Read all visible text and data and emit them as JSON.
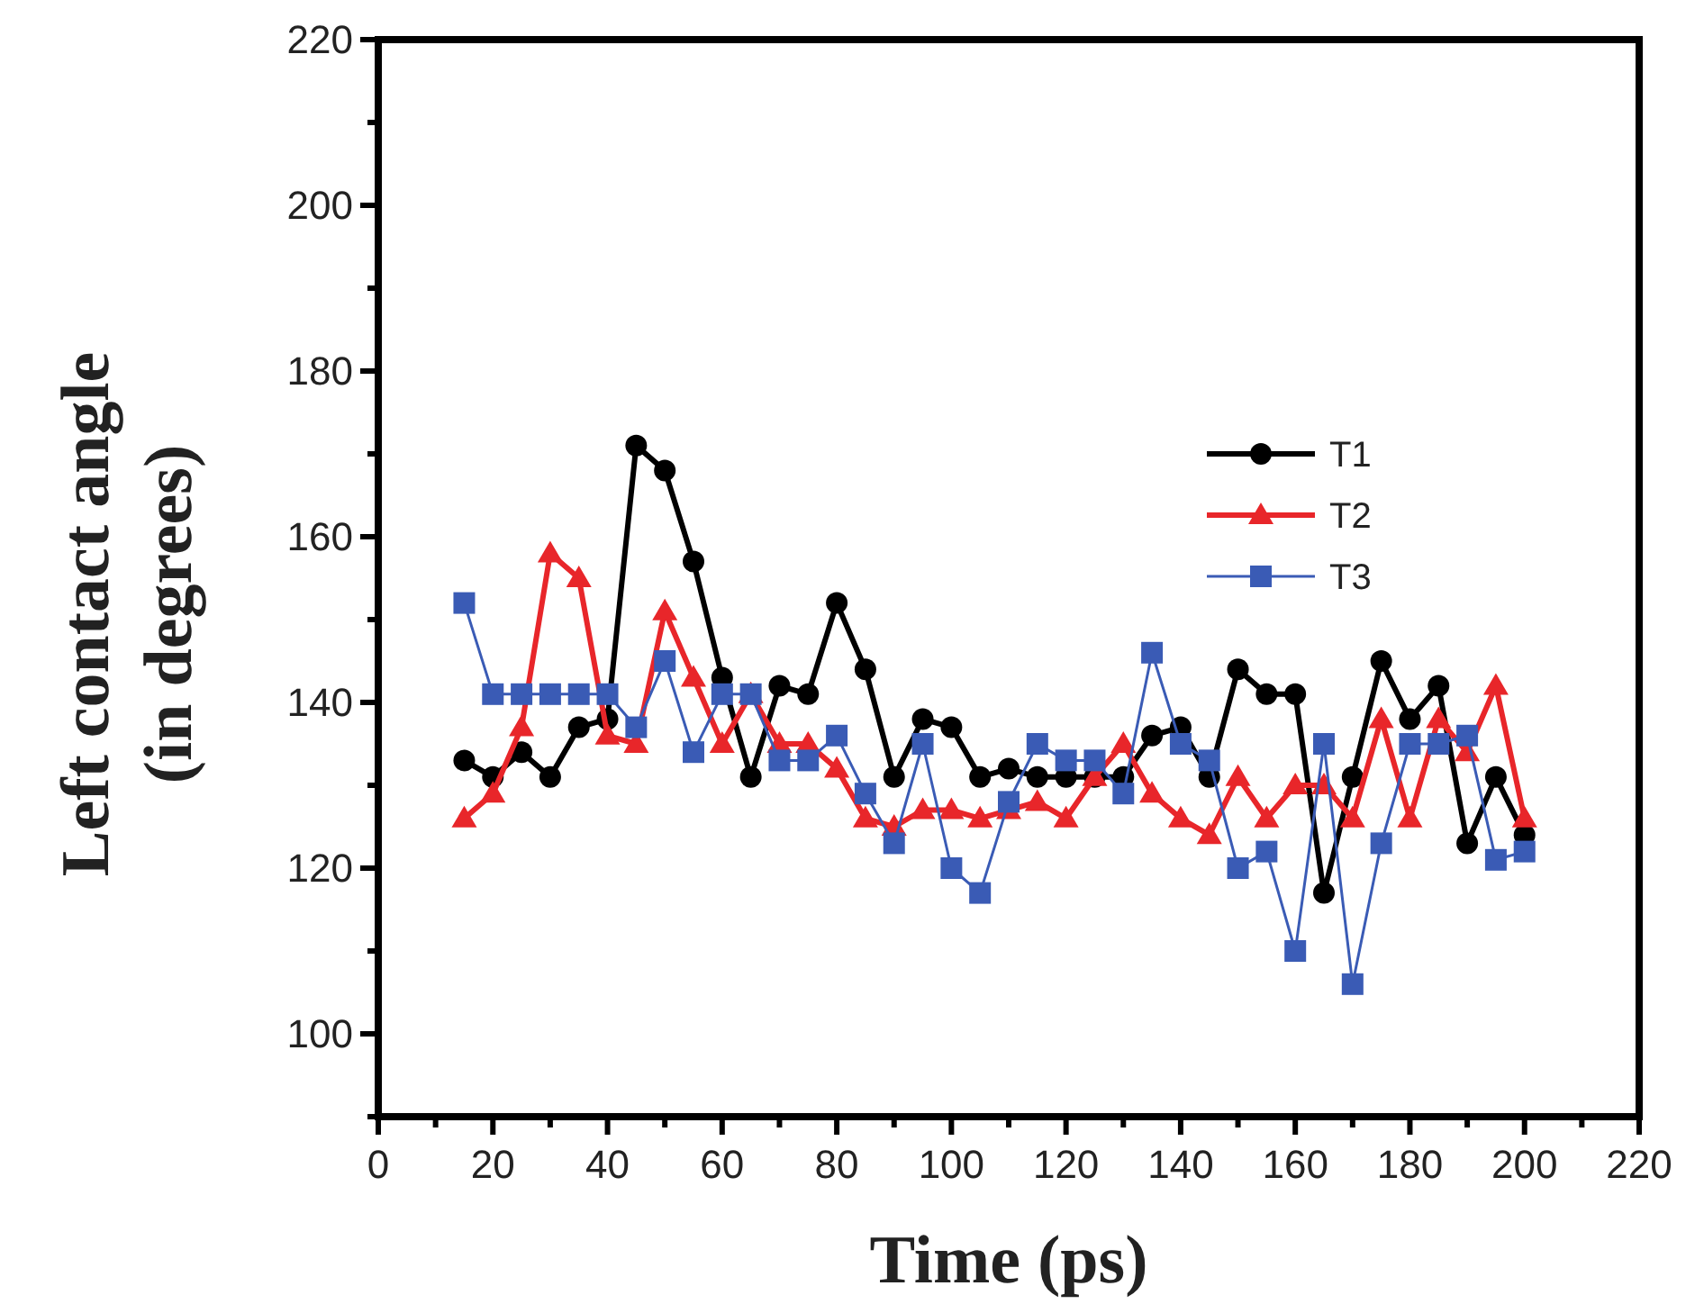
{
  "chart_data": {
    "type": "line",
    "xlabel": "Time (ps)",
    "ylabel": "Left contact angle (in degrees)",
    "x": [
      15,
      20,
      25,
      30,
      35,
      40,
      45,
      50,
      55,
      60,
      65,
      70,
      75,
      80,
      85,
      90,
      95,
      100,
      105,
      110,
      115,
      120,
      125,
      130,
      135,
      140,
      145,
      150,
      155,
      160,
      165,
      170,
      175,
      180,
      185,
      190,
      195,
      200
    ],
    "series": [
      {
        "name": "T1",
        "color": "#000000",
        "marker": "circle",
        "values": [
          133,
          131,
          134,
          131,
          137,
          138,
          171,
          168,
          157,
          143,
          131,
          142,
          141,
          152,
          144,
          131,
          138,
          137,
          131,
          132,
          131,
          131,
          131,
          131,
          136,
          137,
          131,
          144,
          141,
          141,
          117,
          131,
          145,
          138,
          142,
          123,
          131,
          124
        ]
      },
      {
        "name": "T2",
        "color": "#e8262a",
        "marker": "triangle",
        "values": [
          126,
          129,
          137,
          158,
          155,
          136,
          135,
          151,
          143,
          135,
          141,
          135,
          135,
          132,
          126,
          125,
          127,
          127,
          126,
          127,
          128,
          126,
          131,
          135,
          129,
          126,
          124,
          131,
          126,
          130,
          130,
          126,
          138,
          126,
          138,
          134,
          142,
          126
        ]
      },
      {
        "name": "T3",
        "color": "#3a5bb5",
        "marker": "square",
        "values": [
          152,
          141,
          141,
          141,
          141,
          141,
          137,
          145,
          134,
          141,
          141,
          133,
          133,
          136,
          129,
          123,
          135,
          120,
          117,
          128,
          135,
          133,
          133,
          129,
          146,
          135,
          133,
          120,
          122,
          110,
          135,
          106,
          123,
          135,
          135,
          136,
          121,
          122
        ]
      }
    ],
    "xlim": [
      0,
      220
    ],
    "xticks": [
      0,
      {
        "value": 10,
        "label": null
      },
      20,
      {
        "value": 30,
        "label": null
      },
      40,
      {
        "value": 50,
        "label": null
      },
      60,
      {
        "value": 70,
        "label": null
      },
      80,
      {
        "value": 90,
        "label": null
      },
      100,
      {
        "value": 110,
        "label": null
      },
      120,
      {
        "value": 130,
        "label": null
      },
      140,
      {
        "value": 150,
        "label": null
      },
      160,
      {
        "value": 170,
        "label": null
      },
      180,
      {
        "value": 190,
        "label": null
      },
      200,
      {
        "value": 210,
        "label": null
      },
      220
    ],
    "ylim": [
      90,
      220
    ],
    "yticks": [
      {
        "value": 90,
        "label": null
      },
      100,
      {
        "value": 110,
        "label": null
      },
      120,
      {
        "value": 130,
        "label": null
      },
      140,
      {
        "value": 150,
        "label": null
      },
      160,
      {
        "value": 170,
        "label": null
      },
      180,
      {
        "value": 190,
        "label": null
      },
      200,
      {
        "value": 210,
        "label": null
      },
      220
    ],
    "legend": "top right",
    "grid": false,
    "line_style": "solid"
  }
}
